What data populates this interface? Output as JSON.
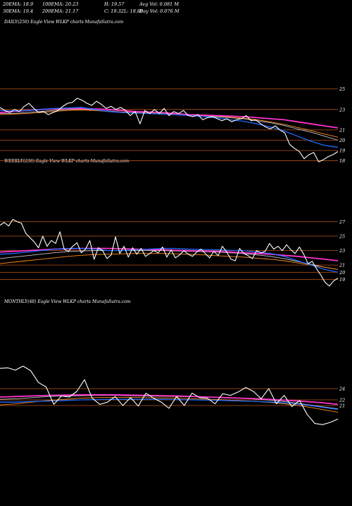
{
  "header": {
    "ema20": "20EMA: 18.9",
    "ema100": "100EMA: 20.23",
    "high": "H: 19.57",
    "avg_vol": "Avg Vol: 0.081 M",
    "ema30": "30EMA: 19.4",
    "ema200": "200EMA: 21.17",
    "close": "C: 19.32",
    "low": "L: 18.88",
    "day_vol": "Day Vol: 0.076  M"
  },
  "colors": {
    "background": "#000000",
    "grid": "#b8541c",
    "price": "#ffffff",
    "ema_short": "#1e6bff",
    "ema_long": "#ff33cc",
    "ema_mid": "#c8c8c8",
    "ema_orange": "#ff8c1a"
  },
  "chart_data": [
    {
      "type": "line",
      "title": "DAILY(250) Eagle  View  WLKP charts MunafaSutra.com",
      "yticks": [
        "25",
        "23",
        "21",
        "20",
        "19",
        "18"
      ],
      "ylim": [
        17.5,
        26
      ],
      "grid": true,
      "series": [
        {
          "role": "price",
          "values": [
            23.2,
            22.9,
            22.7,
            23.0,
            22.8,
            23.3,
            23.6,
            23.1,
            22.7,
            22.8,
            22.5,
            22.7,
            22.9,
            23.3,
            23.6,
            23.7,
            24.1,
            23.9,
            23.6,
            23.4,
            23.8,
            23.5,
            23.1,
            23.3,
            23.0,
            23.2,
            22.9,
            22.4,
            22.8,
            21.6,
            22.9,
            22.6,
            23.0,
            22.6,
            23.1,
            22.4,
            22.8,
            22.6,
            22.9,
            22.4,
            22.3,
            22.5,
            22.0,
            22.2,
            22.3,
            22.1,
            21.9,
            22.1,
            21.8,
            22.0,
            22.1,
            22.4,
            21.9,
            22.0,
            21.6,
            21.3,
            21.1,
            21.4,
            21.0,
            20.7,
            19.6,
            19.2,
            18.9,
            18.2,
            18.6,
            18.8,
            17.9,
            18.1,
            18.4,
            18.6,
            18.9
          ]
        },
        {
          "role": "ema_short",
          "values": [
            22.9,
            22.85,
            22.9,
            23.0,
            23.1,
            23.15,
            23.2,
            23.0,
            22.8,
            22.7,
            22.65,
            22.6,
            22.55,
            22.5,
            22.4,
            22.3,
            22.2,
            22.0,
            21.85,
            21.6,
            21.3,
            20.9,
            20.4,
            19.9,
            19.5,
            19.3
          ]
        },
        {
          "role": "ema_mid",
          "values": [
            22.6,
            22.6,
            22.7,
            22.8,
            22.9,
            23.0,
            23.05,
            22.95,
            22.85,
            22.75,
            22.7,
            22.65,
            22.6,
            22.55,
            22.5,
            22.4,
            22.3,
            22.2,
            22.1,
            21.9,
            21.7,
            21.45,
            21.1,
            20.8,
            20.4,
            20.0
          ]
        },
        {
          "role": "ema_orange",
          "values": [
            22.5,
            22.55,
            22.6,
            22.7,
            22.8,
            22.9,
            22.95,
            22.9,
            22.8,
            22.75,
            22.7,
            22.65,
            22.6,
            22.55,
            22.5,
            22.45,
            22.35,
            22.25,
            22.15,
            22.0,
            21.8,
            21.55,
            21.25,
            20.95,
            20.6,
            20.3
          ]
        },
        {
          "role": "ema_long",
          "values": [
            22.7,
            22.8,
            22.9,
            23.0,
            23.05,
            23.1,
            23.1,
            23.05,
            23.0,
            22.9,
            22.8,
            22.75,
            22.7,
            22.6,
            22.5,
            22.45,
            22.4,
            22.35,
            22.3,
            22.2,
            22.1,
            22.0,
            21.8,
            21.6,
            21.4,
            21.2
          ]
        }
      ]
    },
    {
      "type": "line",
      "title": "WEEKLY(236) Eagle  View  WLKP charts MunafaSutra.com",
      "yticks": [
        "27",
        "25",
        "23",
        "21",
        "20",
        "19"
      ],
      "ylim": [
        18,
        28.5
      ],
      "grid": true,
      "series": [
        {
          "role": "price",
          "values": [
            26.5,
            26.9,
            26.4,
            27.3,
            27.0,
            26.8,
            25.4,
            24.8,
            24.2,
            23.4,
            25.0,
            23.6,
            24.4,
            24.0,
            25.6,
            23.2,
            22.9,
            23.6,
            24.1,
            22.7,
            23.2,
            24.4,
            21.8,
            23.4,
            23.0,
            21.9,
            22.4,
            24.9,
            22.6,
            23.6,
            22.1,
            23.4,
            22.5,
            23.3,
            22.2,
            22.6,
            23.0,
            22.7,
            23.5,
            22.1,
            23.1,
            22.0,
            22.4,
            23.0,
            22.5,
            22.2,
            22.8,
            23.2,
            22.6,
            22.0,
            22.9,
            22.3,
            23.6,
            22.8,
            21.8,
            21.6,
            23.3,
            22.6,
            22.3,
            21.9,
            23.0,
            22.7,
            22.9,
            24.0,
            23.2,
            23.6,
            23.0,
            23.8,
            23.1,
            22.6,
            23.5,
            22.5,
            21.2,
            21.5,
            20.5,
            19.6,
            18.6,
            18.1,
            18.8,
            19.2
          ]
        },
        {
          "role": "ema_short",
          "values": [
            22.5,
            22.6,
            22.8,
            23.0,
            23.2,
            23.3,
            23.3,
            23.2,
            23.0,
            23.0,
            23.1,
            23.2,
            23.3,
            23.3,
            23.2,
            23.15,
            23.1,
            23.05,
            23.0,
            22.8,
            22.6,
            22.2,
            21.6,
            21.0,
            20.4,
            20.0
          ]
        },
        {
          "role": "ema_mid",
          "values": [
            21.9,
            22.1,
            22.3,
            22.5,
            22.7,
            22.85,
            22.95,
            23.0,
            23.0,
            23.0,
            23.0,
            23.0,
            23.0,
            22.95,
            22.9,
            22.85,
            22.8,
            22.7,
            22.6,
            22.4,
            22.2,
            21.9,
            21.5,
            21.1,
            20.7,
            20.4
          ]
        },
        {
          "role": "ema_orange",
          "values": [
            21.2,
            21.4,
            21.6,
            21.8,
            22.0,
            22.2,
            22.35,
            22.45,
            22.5,
            22.55,
            22.6,
            22.6,
            22.6,
            22.55,
            22.5,
            22.4,
            22.3,
            22.2,
            22.1,
            21.95,
            21.8,
            21.6,
            21.3,
            21.0,
            20.7,
            20.4
          ]
        },
        {
          "role": "ema_long",
          "values": [
            22.8,
            22.9,
            23.0,
            23.1,
            23.2,
            23.25,
            23.3,
            23.3,
            23.3,
            23.25,
            23.2,
            23.15,
            23.1,
            23.05,
            23.0,
            22.95,
            22.9,
            22.8,
            22.7,
            22.6,
            22.5,
            22.35,
            22.2,
            22.0,
            21.8,
            21.6
          ]
        }
      ]
    },
    {
      "type": "line",
      "title": "MONTHLY(48) Eagle  View  WLKP charts MunafaSutra.com",
      "yticks": [
        "24",
        "22",
        "21"
      ],
      "ylim": [
        15,
        30
      ],
      "grid": true,
      "series": [
        {
          "role": "price",
          "values": [
            27.6,
            27.7,
            27.3,
            28.0,
            27.2,
            25.1,
            24.3,
            21.2,
            22.7,
            22.5,
            23.5,
            25.6,
            22.3,
            21.2,
            21.6,
            22.6,
            21.0,
            22.4,
            20.9,
            23.2,
            22.3,
            21.6,
            20.5,
            22.6,
            21.0,
            23.2,
            22.4,
            22.3,
            21.3,
            23.1,
            22.8,
            23.4,
            24.2,
            23.5,
            22.2,
            24.0,
            21.3,
            22.8,
            20.8,
            21.9,
            19.4,
            17.8,
            17.6,
            18.0,
            18.6
          ]
        },
        {
          "role": "ema_short",
          "values": [
            21.6,
            21.6,
            21.7,
            21.8,
            21.9,
            22.0,
            22.05,
            22.1,
            22.1,
            22.1,
            22.1,
            22.05,
            22.0,
            21.95,
            21.9,
            21.8,
            21.7,
            21.6,
            21.4,
            21.1,
            20.7,
            20.3
          ]
        },
        {
          "role": "ema_mid",
          "values": [
            22.1,
            22.2,
            22.4,
            22.6,
            22.7,
            22.75,
            22.8,
            22.8,
            22.75,
            22.7,
            22.65,
            22.6,
            22.55,
            22.5,
            22.4,
            22.3,
            22.1,
            21.9,
            21.6,
            21.2,
            20.8,
            20.4
          ]
        },
        {
          "role": "ema_orange",
          "values": [
            21.1,
            21.3,
            21.6,
            21.9,
            22.1,
            22.3,
            22.4,
            22.45,
            22.45,
            22.4,
            22.35,
            22.3,
            22.2,
            22.1,
            22.0,
            21.85,
            21.7,
            21.5,
            21.2,
            20.8,
            20.3,
            19.8
          ]
        },
        {
          "role": "ema_long",
          "values": [
            22.5,
            22.6,
            22.7,
            22.8,
            22.85,
            22.9,
            22.9,
            22.9,
            22.85,
            22.8,
            22.75,
            22.7,
            22.6,
            22.5,
            22.4,
            22.3,
            22.2,
            22.05,
            21.9,
            21.7,
            21.5,
            21.2
          ]
        }
      ]
    }
  ]
}
